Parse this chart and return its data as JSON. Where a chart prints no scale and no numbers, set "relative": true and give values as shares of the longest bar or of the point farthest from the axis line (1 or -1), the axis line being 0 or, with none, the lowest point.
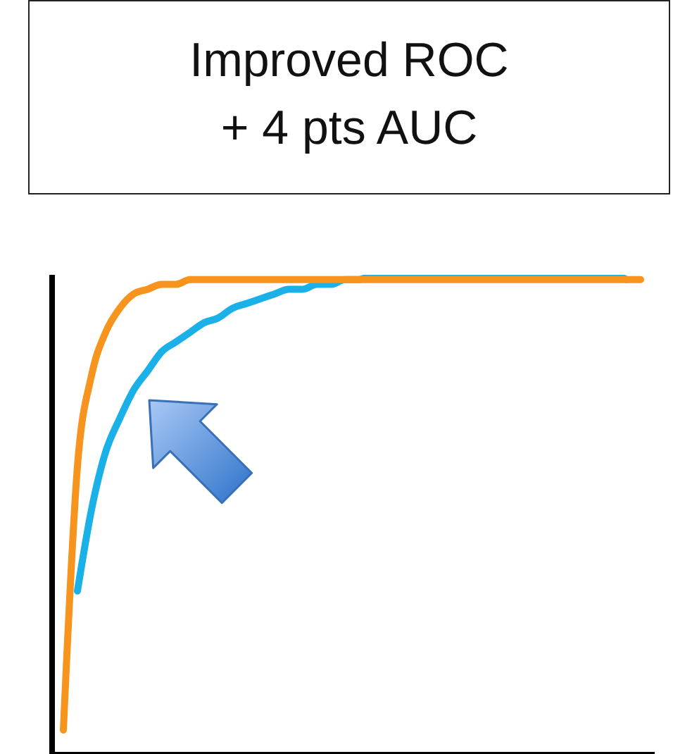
{
  "chart_data": {
    "type": "line",
    "title": "Improved ROC",
    "subtitle": "+ 4 pts AUC",
    "relative": true,
    "categories": [
      null,
      null,
      null,
      null,
      null,
      null,
      null,
      null,
      null,
      null,
      null,
      null,
      null,
      null,
      null,
      null,
      null,
      null,
      null,
      null,
      null,
      null,
      null,
      null,
      null,
      null,
      null,
      null,
      null,
      null,
      null,
      null,
      null,
      null,
      null,
      null,
      null,
      null,
      null,
      null,
      null,
      null
    ],
    "series": [
      {
        "color": "#1ab0e8",
        "values": [
          null,
          0.34,
          0.51,
          0.63,
          0.7,
          0.76,
          0.8,
          0.84,
          0.86,
          0.88,
          0.9,
          0.91,
          0.93,
          0.94,
          0.95,
          0.96,
          0.97,
          0.97,
          0.98,
          0.98,
          0.99,
          0.99,
          1,
          1,
          1,
          1,
          1,
          1,
          1,
          1,
          1,
          1,
          1,
          1,
          1,
          1,
          1,
          1,
          1,
          1,
          0.99,
          null
        ]
      },
      {
        "color": "#f7941d",
        "values": [
          0.05,
          0.6,
          0.79,
          0.88,
          0.93,
          0.96,
          0.97,
          0.98,
          0.98,
          0.99,
          0.99,
          0.99,
          0.99,
          0.99,
          0.99,
          0.99,
          0.99,
          0.99,
          0.99,
          0.99,
          0.99,
          0.99,
          0.99,
          0.99,
          0.99,
          0.99,
          0.99,
          0.99,
          0.99,
          0.99,
          0.99,
          0.99,
          0.99,
          0.99,
          0.99,
          0.99,
          0.99,
          0.99,
          0.99,
          0.99,
          0.99,
          0.99
        ]
      }
    ]
  }
}
